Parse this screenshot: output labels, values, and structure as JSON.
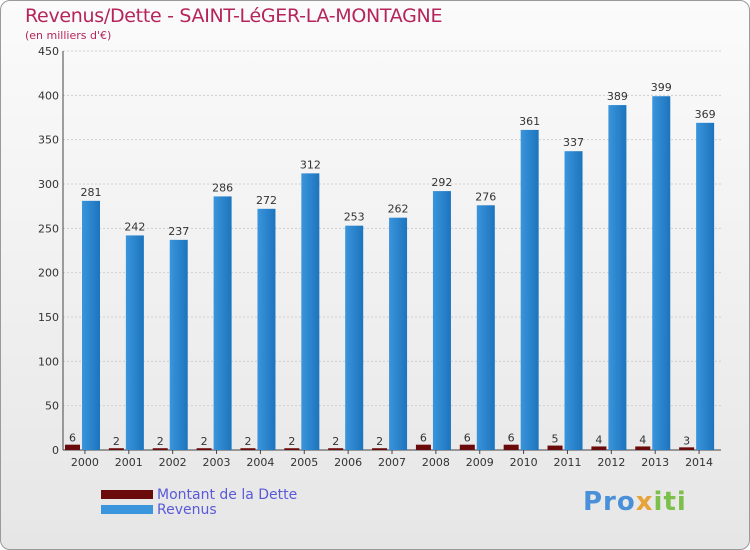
{
  "title": "Revenus/Dette - SAINT-LéGER-LA-MONTAGNE",
  "subtitle": "(en milliers d'€)",
  "logo": {
    "parts": [
      "Pro",
      "x",
      "iti"
    ],
    "colors": [
      "#4a90d9",
      "#e8a23a",
      "#7cc04a"
    ]
  },
  "colors": {
    "dette": "#6b0a0a",
    "revenus": "#3a95dc",
    "revenus_dark": "#1c74bd",
    "title": "#b5245a",
    "legend_text": "#5a5ad8"
  },
  "chart_data": {
    "type": "bar",
    "categories": [
      "2000",
      "2001",
      "2002",
      "2003",
      "2004",
      "2005",
      "2006",
      "2007",
      "2008",
      "2009",
      "2010",
      "2011",
      "2012",
      "2013",
      "2014"
    ],
    "series": [
      {
        "name": "Montant de la Dette",
        "values": [
          6,
          2,
          2,
          2,
          2,
          2,
          2,
          2,
          6,
          6,
          6,
          5,
          4,
          4,
          3
        ]
      },
      {
        "name": "Revenus",
        "values": [
          281,
          242,
          237,
          286,
          272,
          312,
          253,
          262,
          292,
          276,
          361,
          337,
          389,
          399,
          369
        ]
      }
    ],
    "yticks": [
      "0",
      "50",
      "100",
      "150",
      "200",
      "250",
      "300",
      "350",
      "400",
      "450"
    ],
    "ylim": [
      0,
      450
    ],
    "grid": true,
    "legend_position": "bottom-left"
  }
}
